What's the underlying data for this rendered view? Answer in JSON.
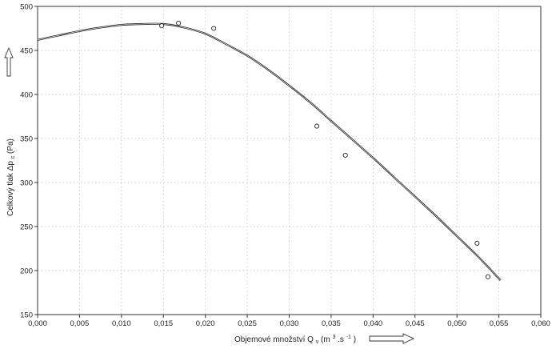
{
  "chart_data": {
    "type": "scatter",
    "title": "",
    "xlabel": "Objemové množství  Q",
    "xlabel_subscript": "v",
    "xlabel_unit_open": " (m",
    "xlabel_unit_sup1": "3",
    "xlabel_unit_mid": " .s",
    "xlabel_unit_sup2": "-1",
    "xlabel_unit_close": ")",
    "ylabel": "Celkový tlak  Δp",
    "ylabel_subscript": "c",
    "ylabel_unit": " (Pa)",
    "xlim": [
      0.0,
      0.06
    ],
    "ylim": [
      150,
      500
    ],
    "x_ticks": [
      "0,000",
      "0,005",
      "0,010",
      "0,015",
      "0,020",
      "0,025",
      "0,030",
      "0,035",
      "0,040",
      "0,045",
      "0,050",
      "0,055",
      "0,060"
    ],
    "x_tick_values": [
      0.0,
      0.005,
      0.01,
      0.015,
      0.02,
      0.025,
      0.03,
      0.035,
      0.04,
      0.045,
      0.05,
      0.055,
      0.06
    ],
    "y_ticks": [
      "150",
      "200",
      "250",
      "300",
      "350",
      "400",
      "450",
      "500"
    ],
    "y_tick_values": [
      150,
      200,
      250,
      300,
      350,
      400,
      450,
      500
    ],
    "grid": true,
    "series": [
      {
        "kind": "points",
        "x": [
          0.0148,
          0.0168,
          0.021,
          0.0333,
          0.0367,
          0.0524,
          0.0537
        ],
        "y": [
          478,
          481,
          475,
          364,
          331,
          231,
          193
        ]
      },
      {
        "kind": "fit",
        "x": [
          0.0,
          0.0025,
          0.005,
          0.0075,
          0.01,
          0.0125,
          0.015,
          0.0175,
          0.02,
          0.0225,
          0.025,
          0.0275,
          0.03,
          0.0325,
          0.035,
          0.0375,
          0.04,
          0.0425,
          0.045,
          0.0475,
          0.05,
          0.0525,
          0.0552
        ],
        "y": [
          462,
          467,
          472,
          476,
          479,
          480,
          480,
          476,
          469,
          457,
          444,
          428,
          410,
          391,
          370,
          349,
          328,
          306,
          284,
          262,
          239,
          216,
          189
        ]
      }
    ]
  }
}
